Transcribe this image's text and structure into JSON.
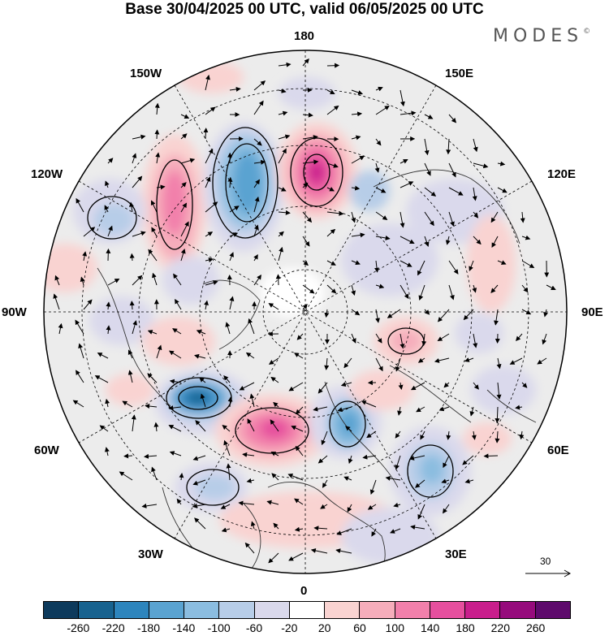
{
  "title": "Base 30/04/2025 00 UTC, valid 06/05/2025 00 UTC",
  "logo": {
    "text": "MODES",
    "mark": "©"
  },
  "longitude_labels": {
    "top": "180",
    "bottom": "0",
    "left": "90W",
    "right": "90E",
    "upper_left_1": "150W",
    "upper_left_2": "120W",
    "upper_right_1": "150E",
    "upper_right_2": "120E",
    "lower_left_1": "60W",
    "lower_left_2": "30W",
    "lower_right_1": "60E",
    "lower_right_2": "30E"
  },
  "reference_vector": {
    "value": "30",
    "icon": "arrow-right-icon"
  },
  "colorbar": {
    "colors": [
      "#0d3a5c",
      "#17628f",
      "#2d85bd",
      "#5aa3d1",
      "#8bbde0",
      "#b7cde8",
      "#dad9ec",
      "#ffffff",
      "#f9d3d1",
      "#f6adbb",
      "#f280ab",
      "#e64f9e",
      "#c91e8c",
      "#960b7c",
      "#5e0a6c"
    ],
    "ticks": [
      "-260",
      "-220",
      "-180",
      "-140",
      "-100",
      "-60",
      "-20",
      "20",
      "60",
      "100",
      "140",
      "180",
      "220",
      "260"
    ]
  }
}
